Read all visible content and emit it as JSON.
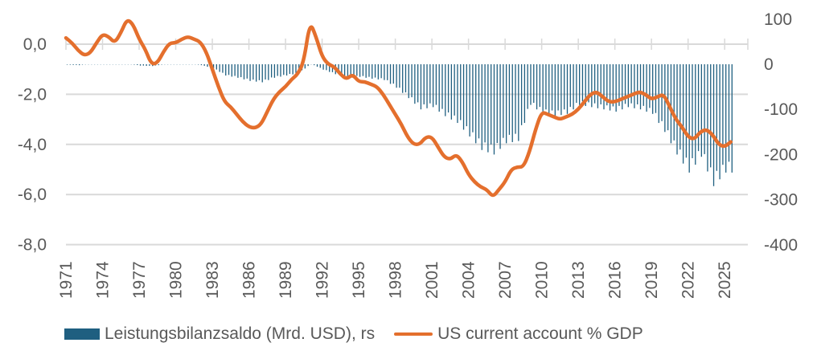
{
  "chart_data": {
    "type": "bar+line",
    "title": "",
    "left_axis": {
      "label": "",
      "ticks": [
        "0,0",
        "-2,0",
        "-4,0",
        "-6,0",
        "-8,0"
      ],
      "values": [
        0,
        -2,
        -4,
        -6,
        -8
      ],
      "range": [
        0.8,
        -8
      ]
    },
    "right_axis": {
      "label": "",
      "ticks": [
        "100",
        "0",
        "-100",
        "-200",
        "-300",
        "-400"
      ],
      "values": [
        100,
        0,
        -100,
        -200,
        -300,
        -400
      ],
      "range": [
        100,
        -400
      ]
    },
    "x_ticks": [
      "1971",
      "1974",
      "1977",
      "1980",
      "1983",
      "1986",
      "1989",
      "1992",
      "1995",
      "1998",
      "2001",
      "2004",
      "2007",
      "2010",
      "2013",
      "2016",
      "2019",
      "2022",
      "2025"
    ],
    "grid": true,
    "legend_position": "bottom",
    "series": [
      {
        "name": "Leistungsbilanzsaldo (Mrd. USD), rs",
        "type": "bar",
        "axis": "right",
        "color": "#1f5f80",
        "x": [
          1971,
          1972,
          1973,
          1974,
          1975,
          1976,
          1977,
          1978,
          1979,
          1980,
          1981,
          1982,
          1983,
          1984,
          1985,
          1986,
          1987,
          1988,
          1989,
          1990,
          1991,
          1992,
          1993,
          1994,
          1995,
          1996,
          1997,
          1998,
          1999,
          2000,
          2001,
          2002,
          2003,
          2004,
          2005,
          2006,
          2007,
          2008,
          2009,
          2010,
          2011,
          2012,
          2013,
          2014,
          2015,
          2016,
          2017,
          2018,
          2019,
          2020,
          2021,
          2022,
          2023,
          2024,
          2025
        ],
        "values": [
          -1,
          -2,
          2,
          1,
          4,
          1,
          -3,
          -4,
          0,
          1,
          2,
          -2,
          -9,
          -25,
          -30,
          -37,
          -40,
          -30,
          -25,
          -20,
          1,
          -12,
          -22,
          -30,
          -28,
          -32,
          -35,
          -52,
          -75,
          -100,
          -95,
          -115,
          -130,
          -160,
          -190,
          -200,
          -175,
          -170,
          -90,
          -110,
          -115,
          -110,
          -90,
          -95,
          -100,
          -105,
          -95,
          -100,
          -110,
          -150,
          -200,
          -240,
          -205,
          -270,
          -240
        ]
      },
      {
        "name": "US current account % GDP",
        "type": "line",
        "axis": "left",
        "color": "#e46f2d",
        "x": [
          1971,
          1971.5,
          1972,
          1972.5,
          1973,
          1973.5,
          1974,
          1974.5,
          1975,
          1975.5,
          1976,
          1976.5,
          1977,
          1977.5,
          1978,
          1978.5,
          1979,
          1979.5,
          1980,
          1980.5,
          1981,
          1981.5,
          1982,
          1982.5,
          1983,
          1983.5,
          1984,
          1984.5,
          1985,
          1985.5,
          1986,
          1986.5,
          1987,
          1987.5,
          1988,
          1988.5,
          1989,
          1989.5,
          1990,
          1990.5,
          1991,
          1991.5,
          1992,
          1992.5,
          1993,
          1993.5,
          1994,
          1994.5,
          1995,
          1995.5,
          1996,
          1996.5,
          1997,
          1997.5,
          1998,
          1998.5,
          1999,
          1999.5,
          2000,
          2000.5,
          2001,
          2001.5,
          2002,
          2002.5,
          2003,
          2003.5,
          2004,
          2004.5,
          2005,
          2005.5,
          2006,
          2006.5,
          2007,
          2007.5,
          2008,
          2008.5,
          2009,
          2009.5,
          2010,
          2010.5,
          2011,
          2011.5,
          2012,
          2012.5,
          2013,
          2013.5,
          2014,
          2014.5,
          2015,
          2015.5,
          2016,
          2016.5,
          2017,
          2017.5,
          2018,
          2018.5,
          2019,
          2019.5,
          2020,
          2020.5,
          2021,
          2021.5,
          2022,
          2022.5,
          2023,
          2023.5,
          2024,
          2024.5,
          2025,
          2025.5
        ],
        "values": [
          0.25,
          0.05,
          -0.25,
          -0.45,
          -0.35,
          0.05,
          0.4,
          0.3,
          0.05,
          0.45,
          1.0,
          0.8,
          0.2,
          -0.2,
          -0.8,
          -0.75,
          -0.3,
          0.05,
          0.05,
          0.2,
          0.3,
          0.2,
          0.1,
          -0.3,
          -1.0,
          -1.7,
          -2.3,
          -2.5,
          -2.8,
          -3.1,
          -3.3,
          -3.35,
          -3.2,
          -2.7,
          -2.2,
          -1.9,
          -1.7,
          -1.4,
          -1.2,
          -0.7,
          0.9,
          0.3,
          -0.5,
          -0.8,
          -0.9,
          -1.2,
          -1.4,
          -1.2,
          -1.5,
          -1.5,
          -1.6,
          -1.7,
          -2.0,
          -2.4,
          -2.8,
          -3.2,
          -3.7,
          -4.0,
          -4.0,
          -3.7,
          -3.7,
          -4.1,
          -4.5,
          -4.6,
          -4.4,
          -4.7,
          -5.2,
          -5.5,
          -5.7,
          -5.8,
          -6.1,
          -5.8,
          -5.5,
          -5.0,
          -4.9,
          -4.9,
          -4.3,
          -3.4,
          -2.7,
          -2.8,
          -2.9,
          -3.0,
          -2.9,
          -2.8,
          -2.6,
          -2.3,
          -2.0,
          -1.9,
          -2.1,
          -2.3,
          -2.3,
          -2.2,
          -2.1,
          -2.0,
          -1.9,
          -2.0,
          -2.2,
          -2.1,
          -2.0,
          -2.5,
          -3.0,
          -3.3,
          -3.7,
          -3.8,
          -3.5,
          -3.4,
          -3.6,
          -4.0,
          -4.1,
          -3.9
        ]
      }
    ]
  },
  "legend": {
    "bar_label": "Leistungsbilanzsaldo (Mrd. USD), rs",
    "line_label": "US current account % GDP"
  }
}
